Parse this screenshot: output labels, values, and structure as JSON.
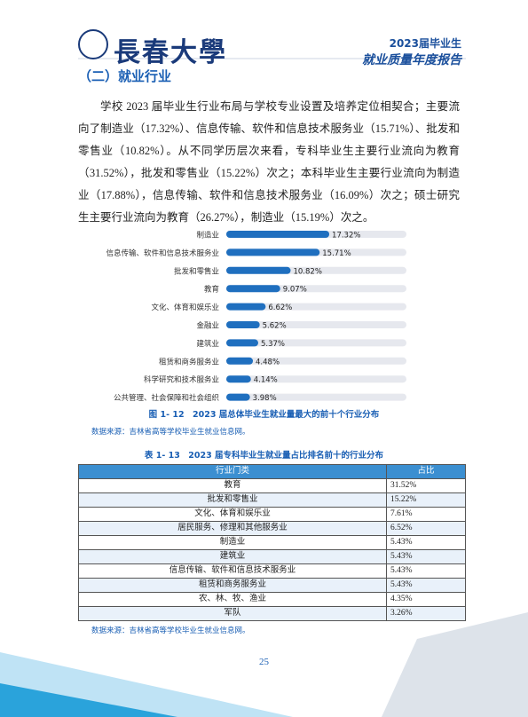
{
  "header": {
    "logo_text": "長春大學",
    "report_year": "2023届毕业生",
    "report_title": "就业质量年度报告"
  },
  "section_title": "（二）就业行业",
  "paragraph": "学校 2023 届毕业生行业布局与学校专业设置及培养定位相契合；主要流向了制造业（17.32%）、信息传输、软件和信息技术服务业（15.71%）、批发和零售业（10.82%）。从不同学历层次来看，专科毕业生主要行业流向为教育（31.52%），批发和零售业（15.22%）次之；本科毕业生主要行业流向为制造业（17.88%），信息传输、软件和信息技术服务业（16.09%）次之；硕士研究生主要行业流向为教育（26.27%），制造业（15.19%）次之。",
  "chart_data": {
    "type": "bar",
    "orientation": "horizontal",
    "color": "#1f6fbf",
    "track_color": "#e6e8ee",
    "categories": [
      "制造业",
      "信息传输、软件和信息技术服务业",
      "批发和零售业",
      "教育",
      "文化、体育和娱乐业",
      "金融业",
      "建筑业",
      "租赁和商务服务业",
      "科学研究和技术服务业",
      "公共管理、社会保障和社会组织"
    ],
    "values": [
      17.32,
      15.71,
      10.82,
      9.07,
      6.62,
      5.62,
      5.37,
      4.48,
      4.14,
      3.98
    ],
    "value_labels": [
      "17.32%",
      "15.71%",
      "10.82%",
      "9.07%",
      "6.62%",
      "5.62%",
      "5.37%",
      "4.48%",
      "4.14%",
      "3.98%"
    ]
  },
  "figure_caption": "图 1- 12　2023 届总体毕业生就业量最大的前十个行业分布",
  "figure_source": "数据来源：吉林省高等学校毕业生就业信息网。",
  "table_caption": "表 1- 13　2023 届专科毕业生就业量占比排名前十的行业分布",
  "table": {
    "header": [
      "行业门类",
      "占比"
    ],
    "rows": [
      [
        "教育",
        "31.52%"
      ],
      [
        "批发和零售业",
        "15.22%"
      ],
      [
        "文化、体育和娱乐业",
        "7.61%"
      ],
      [
        "居民服务、修理和其他服务业",
        "6.52%"
      ],
      [
        "制造业",
        "5.43%"
      ],
      [
        "建筑业",
        "5.43%"
      ],
      [
        "信息传输、软件和信息技术服务业",
        "5.43%"
      ],
      [
        "租赁和商务服务业",
        "5.43%"
      ],
      [
        "农、林、牧、渔业",
        "4.35%"
      ],
      [
        "军队",
        "3.26%"
      ]
    ]
  },
  "table_source": "数据来源：吉林省高等学校毕业生就业信息网。",
  "page_number": "25"
}
